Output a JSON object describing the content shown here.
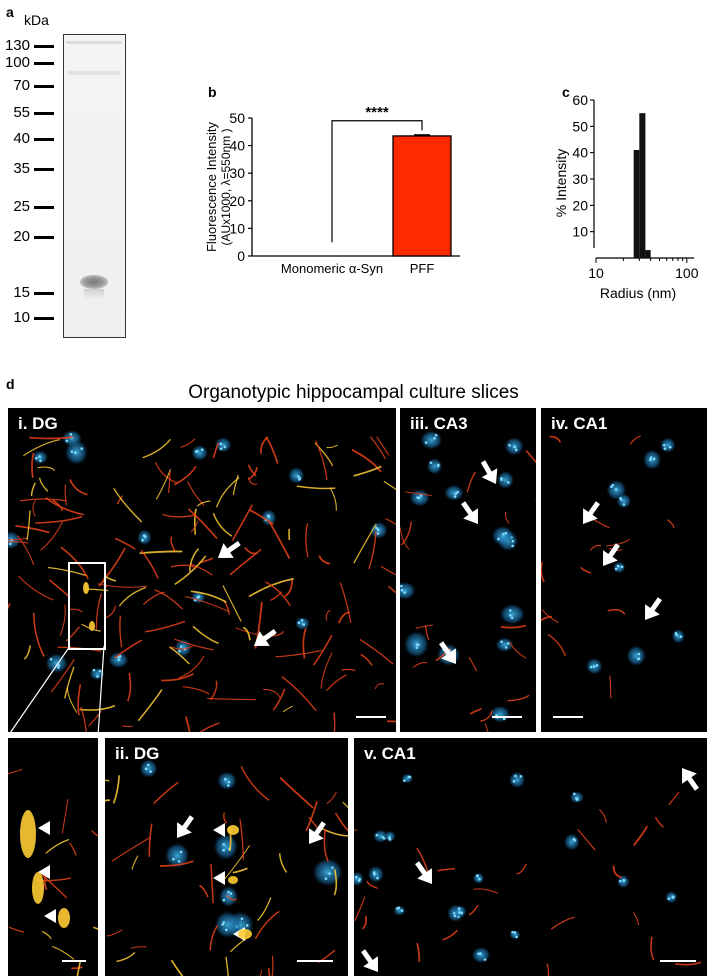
{
  "panel_a": {
    "letter": "a",
    "unit": "kDa",
    "ladder": [
      "130",
      "100",
      "70",
      "55",
      "40",
      "35",
      "25",
      "20",
      "15",
      "10"
    ]
  },
  "chart_data": [
    {
      "panel": "b",
      "type": "bar",
      "categories": [
        "Monomeric α-Syn",
        "PFF"
      ],
      "values": [
        0,
        43.5
      ],
      "error": [
        0,
        0.4
      ],
      "ylabel": "Fluorescence Intensity",
      "ylabel2": "(AUx1000, λ=550nm )",
      "xlabel": "",
      "ylim": [
        0,
        50
      ],
      "yticks": [
        0,
        10,
        20,
        30,
        40,
        50
      ],
      "significance": "****",
      "bar_color": "#ff2a00"
    },
    {
      "panel": "c",
      "type": "bar",
      "xscale": "log",
      "bins": [
        {
          "x_low": 26,
          "x_high": 30,
          "value": 41
        },
        {
          "x_low": 30,
          "x_high": 35,
          "value": 55
        },
        {
          "x_low": 35,
          "x_high": 40,
          "value": 3
        }
      ],
      "xlabel": "Radius (nm)",
      "ylabel": "% Intensity",
      "ylim": [
        0,
        60
      ],
      "yticks": [
        10,
        20,
        30,
        40,
        50,
        60
      ],
      "xticks": [
        "10",
        "100"
      ],
      "xlim": [
        10,
        120
      ],
      "bar_color": "#111111"
    }
  ],
  "panel_d": {
    "letter": "d",
    "title": "Organotypic hippocampal culture slices",
    "panels": {
      "i": "i. DG",
      "ii": "ii. DG",
      "iii": "iii. CA3",
      "iv": "iv. CA1",
      "v": "v. CA1"
    }
  },
  "colors": {
    "nuclei": "#2a9ed8",
    "fibrils": "#e8421a",
    "fibrils_bright": "#ffcc33",
    "arrow": "#ffffff"
  }
}
